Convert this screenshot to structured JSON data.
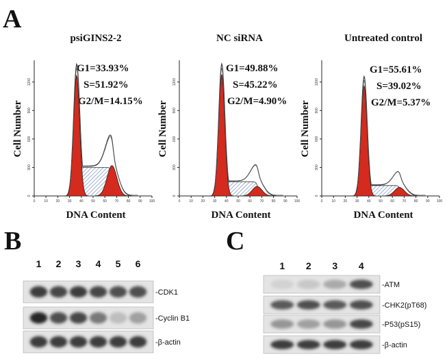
{
  "panel_a": {
    "letter": "A",
    "y_axis_title": "Cell Number",
    "x_axis_title": "DNA Content",
    "y_tick_labels": [
      "0",
      "300",
      "600",
      "900",
      "1200"
    ],
    "x_tick_labels": [
      "0",
      "10",
      "20",
      "30",
      "40",
      "50",
      "60",
      "70",
      "80",
      "90",
      "100"
    ],
    "colors": {
      "g1": "#d42b1e",
      "g2m": "#d42b1e",
      "s_hatch": "#6d86b8",
      "envelope": "#333333"
    },
    "histograms": [
      {
        "title": "psiGINS2-2",
        "stats": [
          "G1=33.93%",
          "S=51.92%",
          "G2/M=14.15%"
        ],
        "g1_peak": 1270,
        "g2_peak": 320,
        "s_plateau": 300,
        "envelope_g2": 420
      },
      {
        "title": "NC siRNA",
        "stats": [
          "G1=49.88%",
          "S=45.22%",
          "G2/M=4.90%"
        ],
        "g1_peak": 1280,
        "g2_peak": 100,
        "s_plateau": 150,
        "envelope_g2": 220
      },
      {
        "title": "Untreated control",
        "stats": [
          "G1=55.61%",
          "S=39.02%",
          "G2/M=5.37%"
        ],
        "g1_peak": 1160,
        "g2_peak": 90,
        "s_plateau": 110,
        "envelope_g2": 180
      }
    ]
  },
  "panel_b": {
    "letter": "B",
    "lanes": [
      "1",
      "2",
      "3",
      "4",
      "5",
      "6"
    ],
    "rows": [
      {
        "label": "-CDK1",
        "intensity": [
          0.85,
          0.8,
          0.85,
          0.8,
          0.75,
          0.75
        ]
      },
      {
        "label": "-Cyclin B1",
        "intensity": [
          0.95,
          0.75,
          0.8,
          0.55,
          0.2,
          0.35
        ]
      },
      {
        "label": "-β-actin",
        "intensity": [
          0.85,
          0.85,
          0.85,
          0.85,
          0.85,
          0.85
        ]
      }
    ]
  },
  "panel_c": {
    "letter": "C",
    "lanes": [
      "1",
      "2",
      "3",
      "4"
    ],
    "rows": [
      {
        "label": "-ATM",
        "intensity": [
          0.1,
          0.15,
          0.3,
          0.75
        ]
      },
      {
        "label": "-CHK2(pT68)",
        "intensity": [
          0.7,
          0.75,
          0.7,
          0.75
        ]
      },
      {
        "label": "-P53(pS15)",
        "intensity": [
          0.4,
          0.35,
          0.4,
          0.8
        ]
      },
      {
        "label": "-β-actin",
        "intensity": [
          0.85,
          0.85,
          0.85,
          0.85
        ]
      }
    ]
  }
}
